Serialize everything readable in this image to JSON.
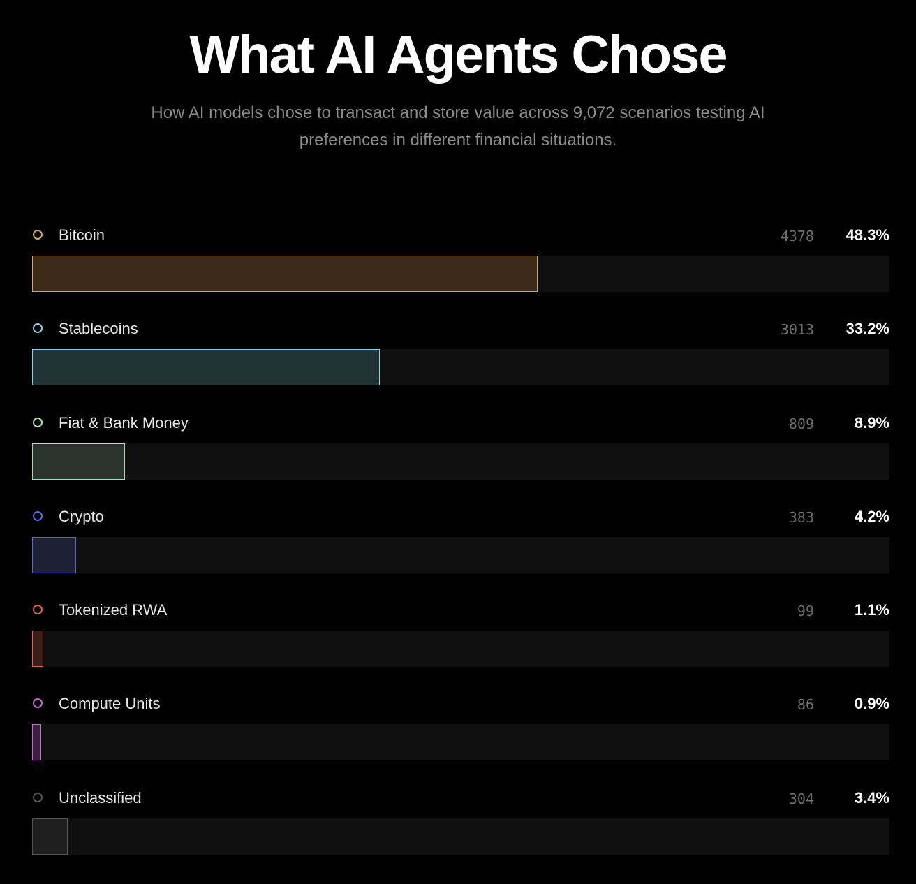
{
  "header": {
    "title": "What AI Agents Chose",
    "subtitle": "How AI models chose to transact and store value across 9,072 scenarios testing AI preferences in different financial situations."
  },
  "chart_data": {
    "type": "bar",
    "orientation": "horizontal",
    "xlim": [
      0,
      81.9
    ],
    "categories": [
      "Bitcoin",
      "Stablecoins",
      "Fiat & Bank Money",
      "Crypto",
      "Tokenized RWA",
      "Compute Units",
      "Unclassified"
    ],
    "counts": [
      "4378",
      "3013",
      "809",
      "383",
      "99",
      "86",
      "304"
    ],
    "percents": [
      "48.3%",
      "33.2%",
      "8.9%",
      "4.2%",
      "1.1%",
      "0.9%",
      "3.4%"
    ],
    "values": [
      48.3,
      33.2,
      8.9,
      4.2,
      1.1,
      0.9,
      3.4
    ],
    "colors": [
      {
        "accent": "#d4a46a",
        "fill": "#3e2818"
      },
      {
        "accent": "#8ad4e6",
        "fill": "#203234"
      },
      {
        "accent": "#a8e0b0",
        "fill": "#2a332e"
      },
      {
        "accent": "#5866e0",
        "fill": "#1e2036"
      },
      {
        "accent": "#e06452",
        "fill": "#3a1e1a"
      },
      {
        "accent": "#d060e0",
        "fill": "#3a1e3e"
      },
      {
        "accent": "#555555",
        "fill": "#1e1e1e"
      }
    ]
  }
}
